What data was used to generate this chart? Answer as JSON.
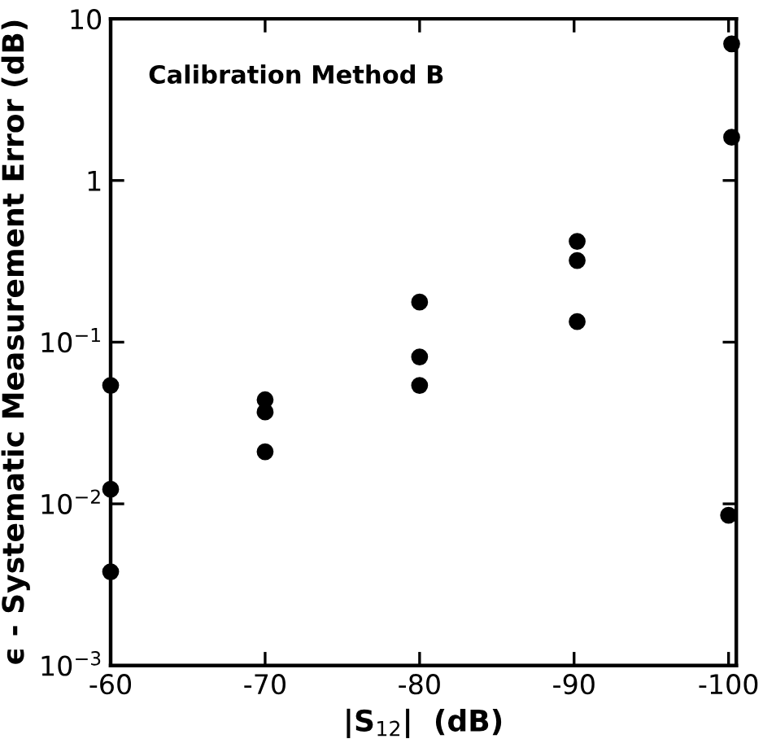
{
  "chart_data": {
    "type": "scatter",
    "xlabel": "|S$_{12}$|  (dB)",
    "ylabel": "ϵ - Systematic Measurement Error (dB)",
    "annotations": [
      "Calibration Method B"
    ],
    "series": [
      {
        "color": "#000000",
        "x": [
          -60,
          -60,
          -60,
          -70,
          -70,
          -70,
          -80,
          -80,
          -80,
          -90.2,
          -90.2,
          -90.2,
          -100.2,
          -100.2,
          -100
        ],
        "values": [
          0.054,
          0.0123,
          0.0038,
          0.044,
          0.037,
          0.021,
          0.177,
          0.081,
          0.054,
          0.42,
          0.32,
          0.134,
          7.0,
          1.85,
          0.0085
        ]
      }
    ],
    "marker": "circle",
    "log": "y",
    "grid": false,
    "legend": false,
    "xlim": [
      -60,
      -100.5
    ],
    "xticks": [
      -60,
      -70,
      -80,
      -90,
      -100
    ],
    "ylim": [
      0.001,
      10
    ],
    "yticks": [
      {
        "value": 0.001,
        "label": "10$^{−3}$"
      },
      {
        "value": 0.01,
        "label": "10$^{−2}$"
      },
      {
        "value": 0.1,
        "label": "10$^{−1}$"
      },
      {
        "value": 1,
        "label": "1"
      },
      {
        "value": 10,
        "label": "10"
      }
    ]
  }
}
